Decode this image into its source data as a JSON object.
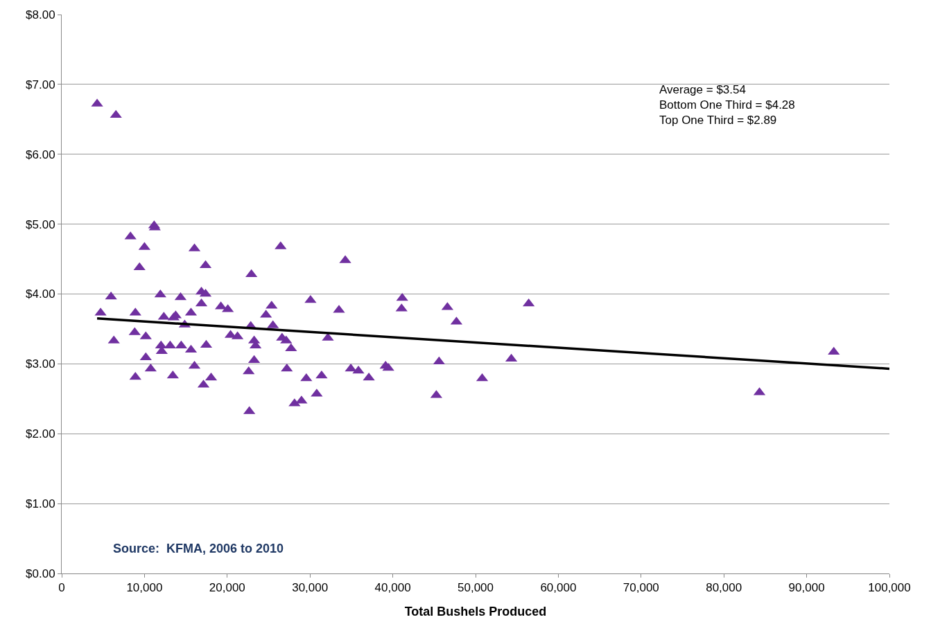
{
  "chart_data": {
    "type": "scatter",
    "xlabel": "Total Bushels Produced",
    "xlim": [
      0,
      100000
    ],
    "xticks": [
      {
        "value": 0,
        "label": "0"
      },
      {
        "value": 10000,
        "label": "10,000"
      },
      {
        "value": 20000,
        "label": "20,000"
      },
      {
        "value": 30000,
        "label": "30,000"
      },
      {
        "value": 40000,
        "label": "40,000"
      },
      {
        "value": 50000,
        "label": "50,000"
      },
      {
        "value": 60000,
        "label": "60,000"
      },
      {
        "value": 70000,
        "label": "70,000"
      },
      {
        "value": 80000,
        "label": "80,000"
      },
      {
        "value": 90000,
        "label": "90,000"
      },
      {
        "value": 100000,
        "label": "100,000"
      }
    ],
    "ylim": [
      0,
      8
    ],
    "yticks": [
      {
        "value": 0,
        "label": "$0.00"
      },
      {
        "value": 1,
        "label": "$1.00"
      },
      {
        "value": 2,
        "label": "$2.00"
      },
      {
        "value": 3,
        "label": "$3.00"
      },
      {
        "value": 4,
        "label": "$4.00"
      },
      {
        "value": 5,
        "label": "$5.00"
      },
      {
        "value": 6,
        "label": "$6.00"
      },
      {
        "value": 7,
        "label": "$7.00"
      },
      {
        "value": 8,
        "label": "$8.00"
      }
    ],
    "grid": "y",
    "series": [
      {
        "marker": "triangle",
        "color": "#7030a0",
        "x": [
          4280,
          6550,
          4700,
          5960,
          6300,
          8310,
          8820,
          8900,
          8900,
          9400,
          10000,
          10160,
          10160,
          10750,
          11170,
          11250,
          11920,
          12000,
          12090,
          12340,
          13100,
          13430,
          13520,
          13770,
          14360,
          14440,
          14860,
          15620,
          15620,
          16040,
          16040,
          16880,
          16880,
          17130,
          17380,
          17380,
          17460,
          18050,
          19230,
          20070,
          20400,
          21240,
          22670,
          22590,
          22840,
          22920,
          23250,
          23250,
          23420,
          24680,
          25360,
          25520,
          26450,
          26620,
          27120,
          27200,
          27710,
          28130,
          28970,
          29550,
          30060,
          30810,
          31400,
          32160,
          33500,
          34260,
          34930,
          35850,
          37110,
          39130,
          39460,
          41140,
          41060,
          45260,
          45590,
          46600,
          47690,
          50800,
          54320,
          56420,
          84300,
          93280
        ],
        "values": [
          6.72,
          6.56,
          3.73,
          3.96,
          3.33,
          4.82,
          3.45,
          3.73,
          2.81,
          4.38,
          4.67,
          3.39,
          3.09,
          2.93,
          4.98,
          4.95,
          3.99,
          3.26,
          3.18,
          3.67,
          3.26,
          2.83,
          3.66,
          3.69,
          3.95,
          3.26,
          3.56,
          3.73,
          3.2,
          4.65,
          2.97,
          4.03,
          3.86,
          2.7,
          4.0,
          4.41,
          3.27,
          2.8,
          3.82,
          3.78,
          3.41,
          3.39,
          2.32,
          2.89,
          3.54,
          4.28,
          3.33,
          3.05,
          3.26,
          3.7,
          3.83,
          3.55,
          4.68,
          3.37,
          3.33,
          2.93,
          3.22,
          2.43,
          2.47,
          2.79,
          3.91,
          2.57,
          2.83,
          3.37,
          3.77,
          4.48,
          2.93,
          2.9,
          2.8,
          2.97,
          2.94,
          3.94,
          3.79,
          2.55,
          3.03,
          3.81,
          3.6,
          2.79,
          3.07,
          3.86,
          2.59,
          3.17
        ]
      },
      {
        "type": "line",
        "color": "#000000",
        "line_style": "solid",
        "x": [
          4280,
          100000
        ],
        "values": [
          3.65,
          2.93
        ]
      }
    ],
    "annotations": [
      "Average = $3.54\nBottom One Third = $4.28\nTop One Third = $2.89",
      "Source:  KFMA, 2006 to 2010"
    ]
  }
}
